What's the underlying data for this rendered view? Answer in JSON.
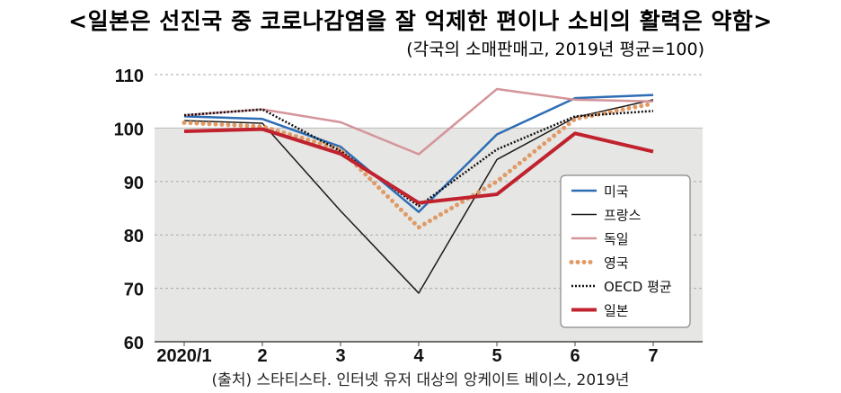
{
  "title": "<일본은 선진국 중 코로나감염을 잘 억제한 편이나 소비의 활력은 약함>",
  "subtitle": "(각국의 소매판매고, 2019년 평균=100)",
  "source": "(출처) 스타티스타. 인터넷 유저 대상의 앙케이트 베이스, 2019년",
  "chart_data": {
    "type": "line",
    "categories": [
      "2020/1",
      "2",
      "3",
      "4",
      "5",
      "6",
      "7"
    ],
    "ylim": [
      60,
      110
    ],
    "yticks": [
      "60",
      "70",
      "80",
      "90",
      "100",
      "110"
    ],
    "grid": true,
    "shaded_below": 100,
    "legend_position": "right",
    "series": [
      {
        "name": "미국",
        "color": "#2e6db4",
        "style": "solid",
        "values": [
          102.2,
          101.7,
          96.5,
          84.3,
          98.8,
          105.6,
          106.2
        ]
      },
      {
        "name": "프랑스",
        "color": "#1a1a1a",
        "style": "thin",
        "values": [
          101.4,
          100.9,
          84.5,
          69.1,
          94.1,
          102.0,
          105.3
        ]
      },
      {
        "name": "독일",
        "color": "#d4949a",
        "style": "solid",
        "values": [
          102.4,
          103.5,
          101.1,
          95.1,
          107.3,
          105.3,
          105.0
        ]
      },
      {
        "name": "영국",
        "color": "#df9a66",
        "style": "dots",
        "values": [
          101.0,
          100.3,
          96.0,
          81.4,
          90.0,
          101.7,
          104.6
        ]
      },
      {
        "name": "OECD 평균",
        "color": "#111111",
        "style": "dotted",
        "values": [
          102.4,
          103.5,
          95.7,
          85.4,
          96.0,
          102.2,
          103.2
        ]
      },
      {
        "name": "일본",
        "color": "#c0222e",
        "style": "thick",
        "values": [
          99.4,
          99.8,
          95.2,
          86.0,
          87.6,
          99.0,
          95.6
        ]
      }
    ]
  }
}
